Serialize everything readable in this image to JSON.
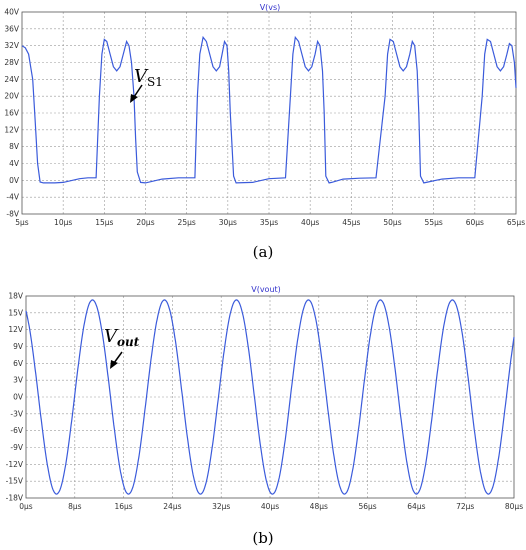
{
  "chart_data": [
    {
      "type": "line",
      "title": "V(vs)",
      "caption": "(a)",
      "annotation": {
        "main": "V",
        "sub": "S1"
      },
      "xlim": [
        5,
        65
      ],
      "ylim": [
        -8,
        40
      ],
      "x_ticks": [
        "5µs",
        "10µs",
        "15µs",
        "20µs",
        "25µs",
        "30µs",
        "35µs",
        "40µs",
        "45µs",
        "50µs",
        "55µs",
        "60µs",
        "65µs"
      ],
      "y_ticks": [
        "-8V",
        "-4V",
        "0V",
        "4V",
        "8V",
        "12V",
        "16V",
        "20V",
        "24V",
        "28V",
        "32V",
        "36V",
        "40V"
      ],
      "grid": true,
      "color": "#3b5bdb",
      "series": [
        {
          "x": [
            5,
            5.4,
            5.8,
            6.3,
            6.6,
            6.9,
            7.2,
            7.6,
            8,
            9,
            10,
            12,
            13,
            14,
            14.4,
            14.7,
            15,
            15.3,
            15.7,
            16.1,
            16.5,
            16.9,
            17.3,
            17.7,
            18,
            18.3,
            18.6,
            18.8,
            19,
            19.4,
            20,
            22,
            24,
            26,
            26.3,
            26.6,
            27,
            27.4,
            27.8,
            28.2,
            28.6,
            29,
            29.3,
            29.6,
            29.9,
            30.1,
            30.3,
            30.7,
            31,
            33,
            35,
            37,
            37.6,
            37.9,
            38.2,
            38.6,
            39,
            39.4,
            39.8,
            40.2,
            40.6,
            40.9,
            41.2,
            41.5,
            41.7,
            41.9,
            42.3,
            42.6,
            44,
            46,
            48,
            49.1,
            49.4,
            49.7,
            50.1,
            50.5,
            50.9,
            51.3,
            51.7,
            52.1,
            52.4,
            52.7,
            53,
            53.2,
            53.4,
            53.8,
            54.1,
            56,
            58,
            60,
            60.9,
            61.2,
            61.5,
            61.9,
            62.3,
            62.7,
            63.1,
            63.5,
            63.9,
            64.2,
            64.5,
            64.8,
            65
          ],
          "values": [
            32,
            31.5,
            30,
            24,
            14,
            4,
            -0.4,
            -0.6,
            -0.6,
            -0.6,
            -0.5,
            0.4,
            0.6,
            0.6,
            20,
            30,
            33.5,
            33,
            30,
            27,
            26,
            27,
            30,
            33,
            32,
            28,
            20,
            10,
            2,
            -0.5,
            -0.6,
            0.3,
            0.6,
            0.6,
            20,
            30,
            34,
            33,
            30,
            27,
            26,
            27,
            30,
            33,
            32,
            26,
            16,
            1,
            -0.6,
            -0.5,
            0.4,
            0.6,
            20,
            30,
            34,
            33,
            30,
            27,
            26,
            27,
            30,
            33,
            32,
            26,
            16,
            1,
            -0.6,
            -0.5,
            0.3,
            0.5,
            0.6,
            20,
            30,
            33.5,
            33,
            30,
            27,
            26,
            27,
            30,
            33,
            32,
            26,
            16,
            1,
            -0.6,
            -0.5,
            0.3,
            0.6,
            0.6,
            20,
            30,
            33.5,
            33,
            30,
            27,
            26,
            27,
            30,
            32.5,
            32,
            28,
            22
          ]
        }
      ]
    },
    {
      "type": "line",
      "title": "V(vout)",
      "caption": "(b)",
      "annotation": {
        "main": "V",
        "sub": "out"
      },
      "xlim": [
        0,
        80
      ],
      "ylim": [
        -18,
        18
      ],
      "x_ticks": [
        "0µs",
        "8µs",
        "16µs",
        "24µs",
        "32µs",
        "40µs",
        "48µs",
        "56µs",
        "64µs",
        "72µs",
        "80µs"
      ],
      "y_ticks": [
        "-18V",
        "-15V",
        "-12V",
        "-9V",
        "-6V",
        "-3V",
        "0V",
        "3V",
        "6V",
        "9V",
        "12V",
        "15V",
        "18V"
      ],
      "grid": true,
      "color": "#3b5bdb",
      "series": [
        {
          "amplitude": 17.3,
          "period_us": 11.8,
          "peak_times_us": [
            10.9,
            22.7,
            34.5,
            46.3,
            58.1,
            69.9
          ],
          "x_start": 0,
          "x_end": 80
        }
      ]
    }
  ]
}
